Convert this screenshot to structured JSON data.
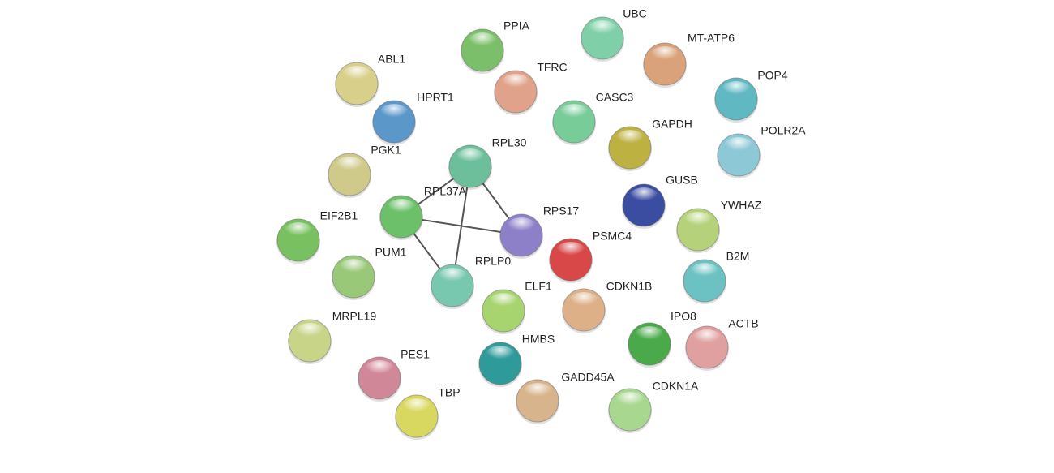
{
  "nodes": [
    "PPIA",
    "UBC",
    "MT-ATP6",
    "ABL1",
    "TFRC",
    "POP4",
    "HPRT1",
    "CASC3",
    "GAPDH",
    "POLR2A",
    "PGK1",
    "RPL30",
    "GUSB",
    "RPL37A",
    "RPS17",
    "YWHAZ",
    "EIF2B1",
    "PSMC4",
    "B2M",
    "PUM1",
    "RPLP0",
    "ELF1",
    "CDKN1B",
    "MRPL19",
    "IPO8",
    "ACTB",
    "HMBS",
    "PES1",
    "GADD45A",
    "CDKN1A",
    "TBP"
  ]
}
